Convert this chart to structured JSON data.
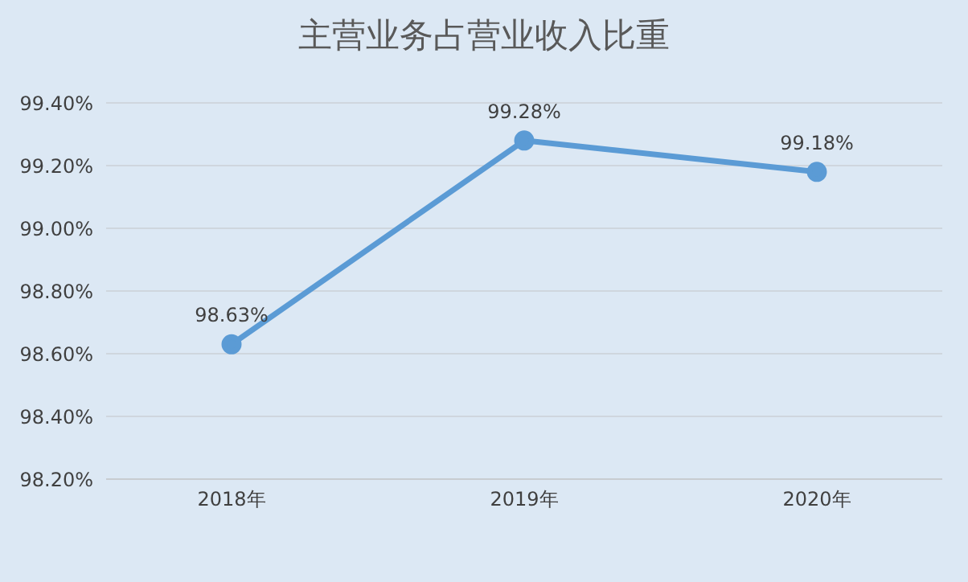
{
  "chart_data": {
    "type": "line",
    "title": "主营业务占营业收入比重",
    "categories": [
      "2018年",
      "2019年",
      "2020年"
    ],
    "series": [
      {
        "color": "#5b9bd5",
        "values": [
          98.63,
          99.28,
          99.18
        ],
        "value_labels": [
          "98.63%",
          "99.28%",
          "99.18%"
        ]
      }
    ],
    "ylim": [
      98.2,
      99.4
    ],
    "yticks": [
      {
        "value": 98.2,
        "label": "98.20%"
      },
      {
        "value": 98.4,
        "label": "98.40%"
      },
      {
        "value": 98.6,
        "label": "98.60%"
      },
      {
        "value": 98.8,
        "label": "98.80%"
      },
      {
        "value": 99.0,
        "label": "99.00%"
      },
      {
        "value": 99.2,
        "label": "99.20%"
      },
      {
        "value": 99.4,
        "label": "99.40%"
      }
    ],
    "grid": "y",
    "legend": false,
    "marker": "circle",
    "line_style": "solid"
  }
}
